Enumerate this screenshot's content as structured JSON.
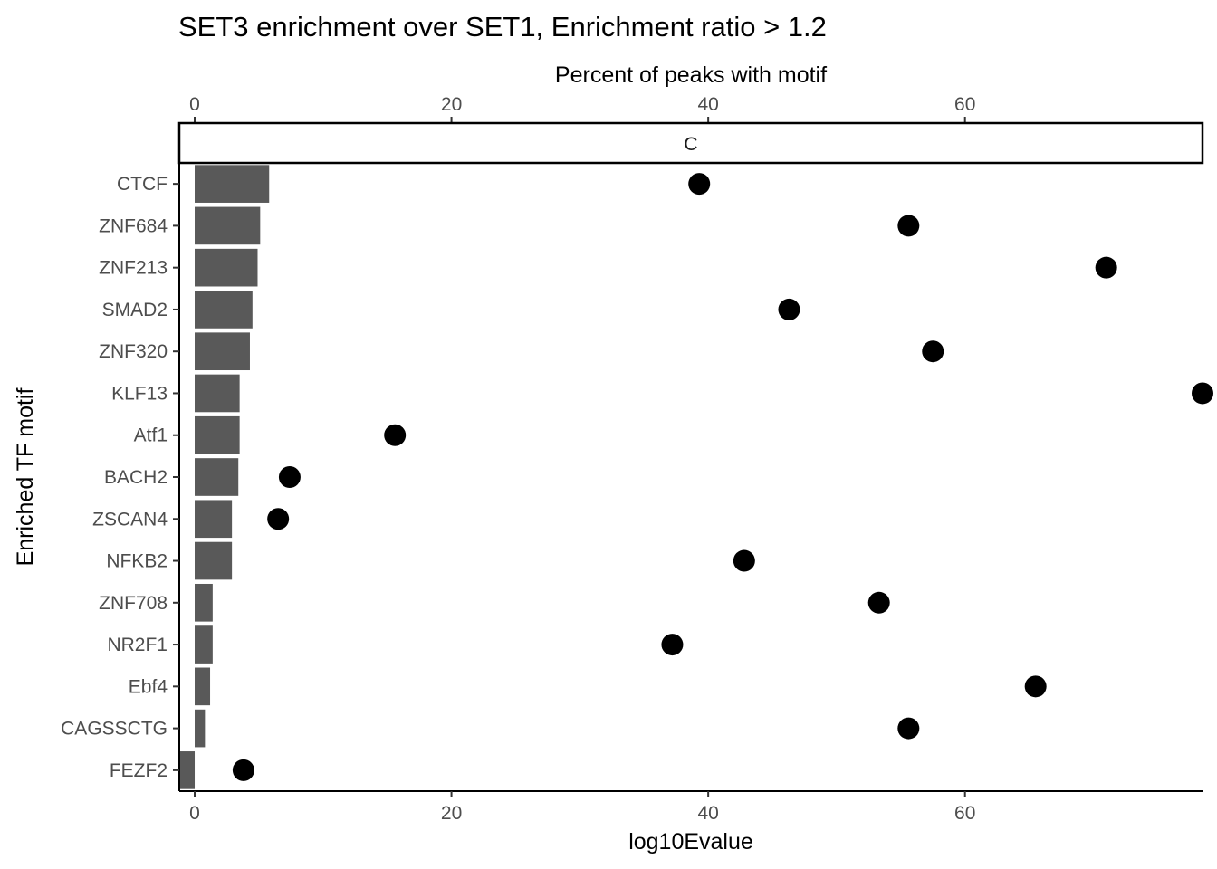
{
  "chart_data": {
    "type": "bar",
    "title": "SET3 enrichment over SET1, Enrichment ratio > 1.2",
    "facet_label": "C",
    "xlabel": "log10Evalue",
    "x2label": "Percent of peaks with motif",
    "ylabel": "Enriched TF motif",
    "xlim": [
      -1.2,
      78.5
    ],
    "x_ticks": [
      0,
      20,
      40,
      60
    ],
    "x2_ticks": [
      0,
      20,
      40,
      60
    ],
    "categories": [
      "CTCF",
      "ZNF684",
      "ZNF213",
      "SMAD2",
      "ZNF320",
      "KLF13",
      "Atf1",
      "BACH2",
      "ZSCAN4",
      "NFKB2",
      "ZNF708",
      "NR2F1",
      "Ebf4",
      "CAGSSCTG",
      "FEZF2"
    ],
    "series": [
      {
        "name": "log10Evalue",
        "type": "bar",
        "color": "#595959",
        "values": [
          5.8,
          5.1,
          4.9,
          4.5,
          4.3,
          3.5,
          3.5,
          3.4,
          2.9,
          2.9,
          1.4,
          1.4,
          1.2,
          0.8,
          -1.2
        ]
      },
      {
        "name": "Percent of peaks with motif",
        "type": "point",
        "color": "#000000",
        "values": [
          39.3,
          55.6,
          71.0,
          46.3,
          57.5,
          78.5,
          15.6,
          7.4,
          6.5,
          42.8,
          53.3,
          37.2,
          65.5,
          55.6,
          3.8
        ]
      }
    ]
  }
}
